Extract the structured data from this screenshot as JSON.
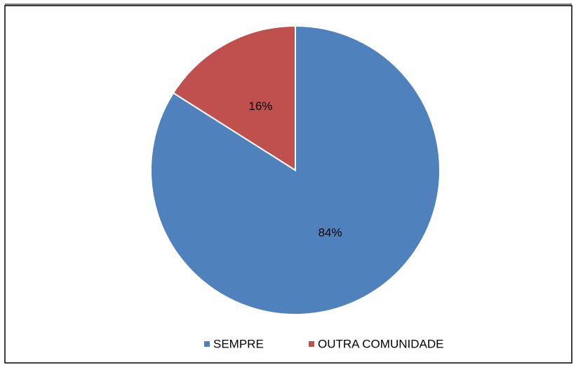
{
  "chart_data": {
    "type": "pie",
    "categories": [
      "SEMPRE",
      "OUTRA COMUNIDADE"
    ],
    "values": [
      84,
      16
    ],
    "value_labels": [
      "84%",
      "16%"
    ],
    "colors": [
      "#4f81bd",
      "#c0504d"
    ],
    "legend": "bottom"
  }
}
